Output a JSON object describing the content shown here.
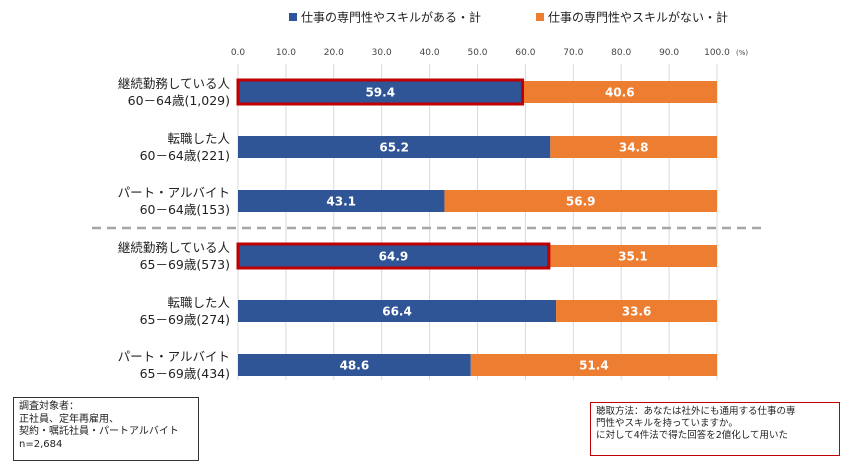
{
  "chart_data": {
    "type": "bar",
    "stacked": true,
    "orientation": "horizontal",
    "categories": [
      [
        "継続勤務している人",
        "60－64歳(1,029)"
      ],
      [
        "転職した人",
        "60－64歳(221)"
      ],
      [
        "パート・アルバイト",
        "60－64歳(153)"
      ],
      [
        "継続勤務している人",
        "65－69歳(573)"
      ],
      [
        "転職した人",
        "65－69歳(274)"
      ],
      [
        "パート・アルバイト",
        "65－69歳(434)"
      ]
    ],
    "series": [
      {
        "name": "仕事の専門性やスキルがある・計",
        "color": "#2f5597",
        "values": [
          59.4,
          65.2,
          43.1,
          64.9,
          66.4,
          48.6
        ],
        "labels": [
          "59.4",
          "65.2",
          "43.1",
          "64.9",
          "66.4",
          "48.6"
        ]
      },
      {
        "name": "仕事の専門性やスキルがない・計",
        "color": "#ed7d31",
        "values": [
          40.6,
          34.8,
          56.9,
          35.1,
          33.6,
          51.4
        ],
        "labels": [
          "40.6",
          "34.8",
          "56.9",
          "35.1",
          "33.6",
          "51.4"
        ]
      }
    ],
    "highlighted_rows": [
      0,
      3
    ],
    "highlight_color": "#c00000",
    "xlim": [
      0,
      100
    ],
    "xticks": [
      0,
      10,
      20,
      30,
      40,
      50,
      60,
      70,
      80,
      90,
      100
    ],
    "xtick_labels": [
      "0.0",
      "10.0",
      "20.0",
      "30.0",
      "40.0",
      "50.0",
      "60.0",
      "70.0",
      "80.0",
      "90.0",
      "100.0"
    ],
    "x_unit": "(%)",
    "grid": true,
    "legend_position": "top"
  },
  "notes": {
    "target": [
      "調査対象者：",
      "正社員、定年再雇用、",
      "契約・嘱託社員・パートアルバイト",
      "n=2,684"
    ],
    "method": [
      "聴取方法：あなたは社外にも通用する仕事の専",
      "門性やスキルを持っていますか。",
      "に対して4件法で得た回答を2値化して用いた"
    ]
  }
}
